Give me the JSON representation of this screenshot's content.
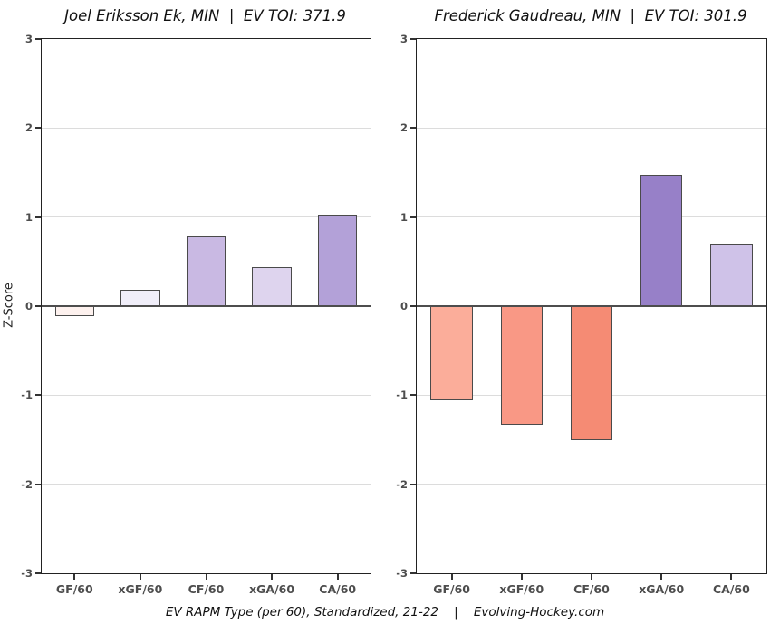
{
  "ylabel": "Z-Score",
  "caption": "EV RAPM Type (per 60), Standardized, 21-22    |    Evolving-Hockey.com",
  "chart_data": [
    {
      "type": "bar",
      "title": "Joel Eriksson Ek, MIN  |  EV TOI: 371.9",
      "categories": [
        "GF/60",
        "xGF/60",
        "CF/60",
        "xGA/60",
        "CA/60"
      ],
      "values": [
        -0.11,
        0.18,
        0.78,
        0.44,
        1.03
      ],
      "bar_colors": [
        "#fdf1ee",
        "#f0eef9",
        "#c9b9e3",
        "#ded4ee",
        "#b3a1d8"
      ],
      "ylabel": "Z-Score",
      "ylim": [
        -3,
        3
      ],
      "yticks": [
        3,
        2,
        1,
        0,
        -1,
        -2,
        -3
      ],
      "grid": true,
      "legend": "none"
    },
    {
      "type": "bar",
      "title": "Frederick Gaudreau, MIN  |  EV TOI: 301.9",
      "categories": [
        "GF/60",
        "xGF/60",
        "CF/60",
        "xGA/60",
        "CA/60"
      ],
      "values": [
        -1.06,
        -1.33,
        -1.5,
        1.47,
        0.7
      ],
      "bar_colors": [
        "#fbad9a",
        "#f99885",
        "#f58b74",
        "#9780c8",
        "#cfc2e8"
      ],
      "ylabel": "Z-Score",
      "ylim": [
        -3,
        3
      ],
      "yticks": [
        3,
        2,
        1,
        0,
        -1,
        -2,
        -3
      ],
      "grid": true,
      "legend": "none"
    }
  ],
  "style": {
    "grid_color": "#dcdcdc",
    "zero_line_color": "#4d4d4d",
    "bar_border_color": "#4a4a4a",
    "tick_label_color": "#4d4d4d"
  }
}
